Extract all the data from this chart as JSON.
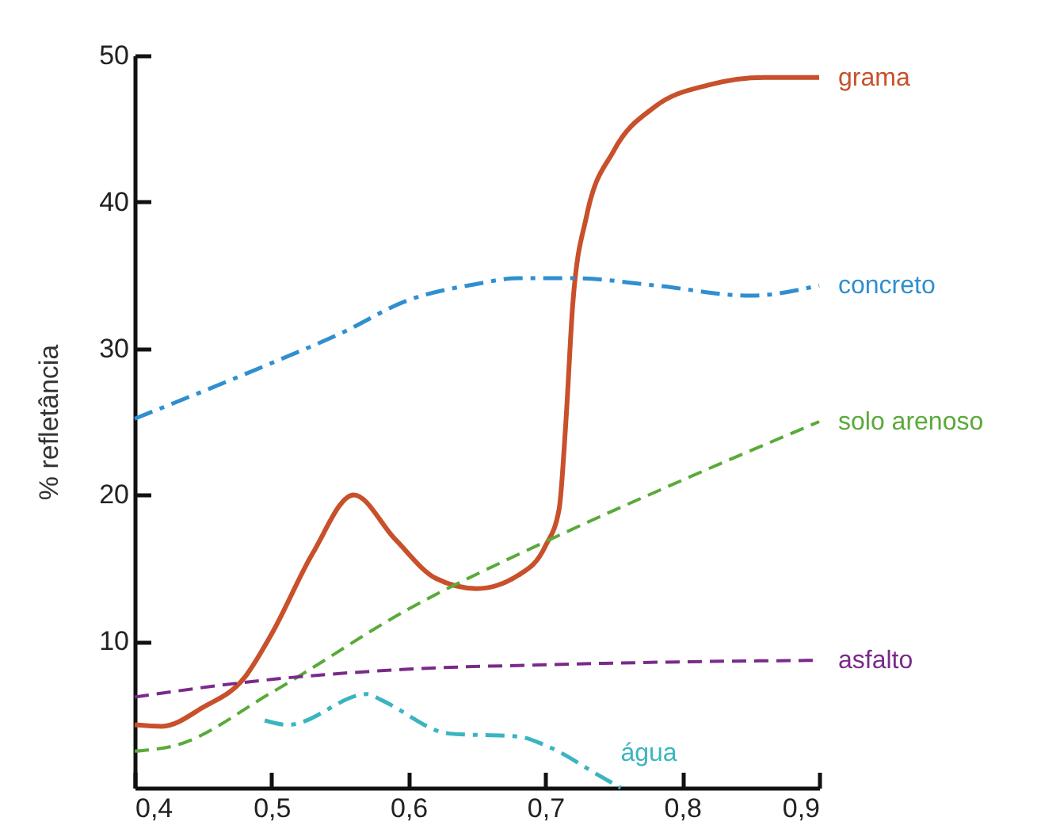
{
  "chart_data": {
    "type": "line",
    "ylabel": "% refletância",
    "xlim": [
      0.4,
      0.9
    ],
    "ylim": [
      0,
      50
    ],
    "xticks": [
      {
        "value": 0.4,
        "label": "0,4"
      },
      {
        "value": 0.5,
        "label": "0,5"
      },
      {
        "value": 0.6,
        "label": "0,6"
      },
      {
        "value": 0.7,
        "label": "0,7"
      },
      {
        "value": 0.8,
        "label": "0,8"
      },
      {
        "value": 0.9,
        "label": "0,9"
      }
    ],
    "yticks": [
      10,
      20,
      30,
      40,
      50
    ],
    "grid": false,
    "marker": "none",
    "series": [
      {
        "name": "grama",
        "color": "#c8502a",
        "line_style": "solid",
        "x": [
          0.4,
          0.42,
          0.45,
          0.48,
          0.5,
          0.53,
          0.56,
          0.59,
          0.62,
          0.65,
          0.68,
          0.7,
          0.71,
          0.715,
          0.72,
          0.73,
          0.75,
          0.78,
          0.82,
          0.86,
          0.9
        ],
        "values": [
          4.3,
          4.2,
          5.5,
          7.5,
          10.5,
          16,
          20,
          17,
          14.3,
          13.6,
          14.5,
          16.5,
          19,
          25,
          33,
          39,
          43.5,
          46.5,
          48,
          48.5,
          48.5
        ]
      },
      {
        "name": "concreto",
        "color": "#2f8fcf",
        "line_style": "dashdot",
        "x": [
          0.4,
          0.5,
          0.55,
          0.6,
          0.65,
          0.68,
          0.72,
          0.78,
          0.85,
          0.9
        ],
        "values": [
          25.2,
          29,
          31,
          33.3,
          34.4,
          34.8,
          34.8,
          34.3,
          33.6,
          34.3
        ]
      },
      {
        "name": "solo arenoso",
        "color": "#5aaa3a",
        "line_style": "dashed",
        "x": [
          0.4,
          0.43,
          0.5,
          0.6,
          0.7,
          0.8,
          0.9
        ],
        "values": [
          2.5,
          2.9,
          6.5,
          12.2,
          16.8,
          21,
          25
        ]
      },
      {
        "name": "asfalto",
        "color": "#7a2a8a",
        "line_style": "dashed",
        "x": [
          0.4,
          0.5,
          0.6,
          0.7,
          0.8,
          0.9
        ],
        "values": [
          6.2,
          7.4,
          8.1,
          8.4,
          8.6,
          8.7
        ]
      },
      {
        "name": "água",
        "color": "#3ab5c0",
        "line_style": "dashdot",
        "x": [
          0.495,
          0.512,
          0.57,
          0.58,
          0.63,
          0.68,
          0.7,
          0.74,
          0.755
        ],
        "values": [
          4.6,
          4.3,
          6.4,
          6.0,
          3.7,
          3.5,
          2.9,
          0.8,
          0
        ]
      }
    ]
  }
}
